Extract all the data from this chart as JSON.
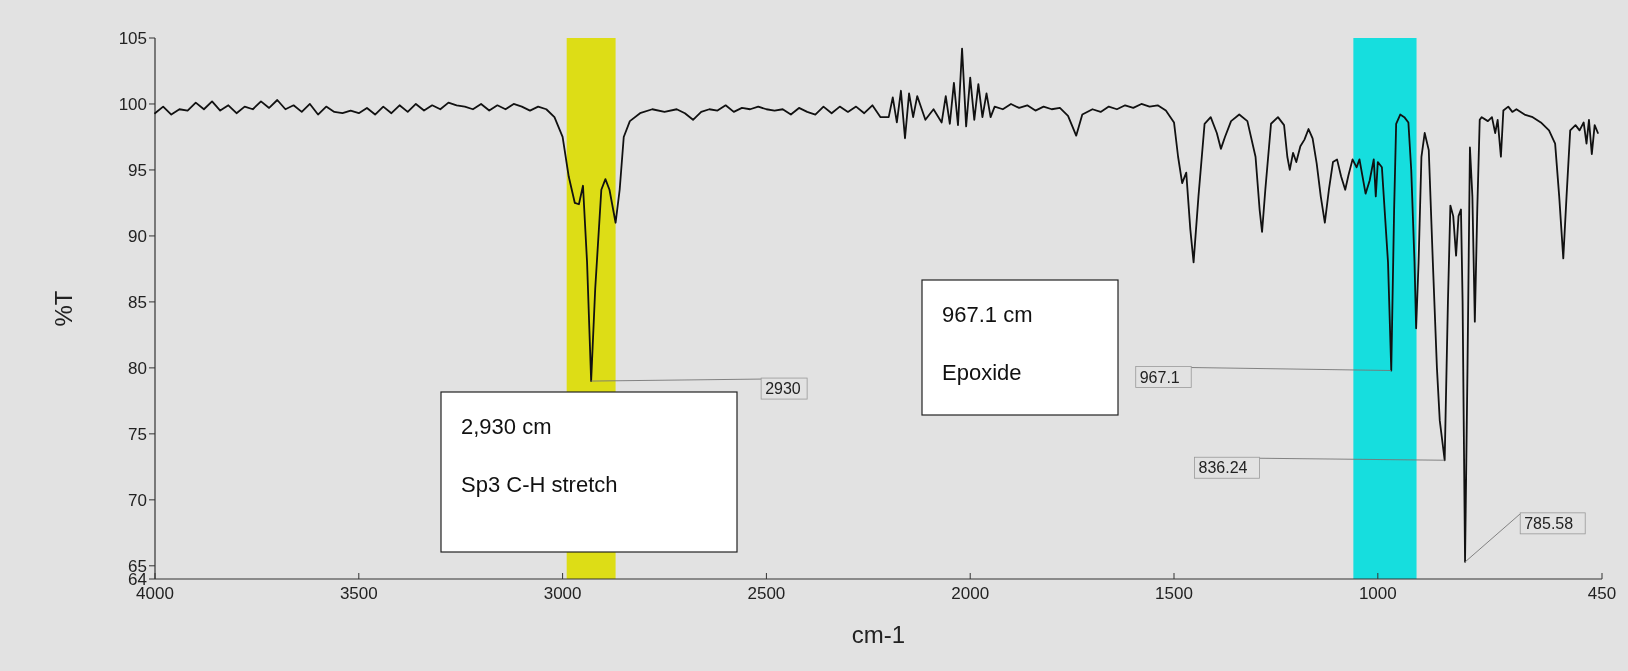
{
  "chart_data": {
    "type": "line",
    "xlabel": "cm-1",
    "ylabel": "%T",
    "xlim": [
      4000,
      450
    ],
    "ylim": [
      64,
      105
    ],
    "xticks": [
      4000,
      3500,
      3000,
      2500,
      2000,
      1500,
      1000,
      450
    ],
    "yticks": [
      64,
      65,
      70,
      75,
      80,
      85,
      90,
      95,
      100,
      105
    ],
    "grid": false,
    "marker": "none",
    "line_style": "solid",
    "series": [
      {
        "color": "#111111",
        "x": [
          4000,
          3980,
          3960,
          3940,
          3920,
          3900,
          3880,
          3860,
          3840,
          3820,
          3800,
          3780,
          3760,
          3740,
          3720,
          3700,
          3680,
          3660,
          3640,
          3620,
          3600,
          3580,
          3560,
          3540,
          3520,
          3500,
          3480,
          3460,
          3440,
          3420,
          3400,
          3380,
          3360,
          3340,
          3320,
          3300,
          3280,
          3260,
          3240,
          3220,
          3200,
          3180,
          3160,
          3140,
          3120,
          3100,
          3080,
          3060,
          3040,
          3020,
          3000,
          2985,
          2970,
          2960,
          2950,
          2940,
          2930,
          2920,
          2905,
          2895,
          2885,
          2870,
          2860,
          2850,
          2835,
          2810,
          2780,
          2750,
          2720,
          2700,
          2680,
          2660,
          2640,
          2620,
          2600,
          2580,
          2560,
          2540,
          2520,
          2500,
          2480,
          2460,
          2440,
          2420,
          2400,
          2380,
          2360,
          2340,
          2320,
          2300,
          2280,
          2260,
          2240,
          2220,
          2200,
          2190,
          2180,
          2170,
          2160,
          2150,
          2140,
          2130,
          2110,
          2090,
          2070,
          2060,
          2050,
          2040,
          2030,
          2020,
          2010,
          2000,
          1990,
          1980,
          1970,
          1960,
          1950,
          1940,
          1920,
          1900,
          1880,
          1860,
          1840,
          1820,
          1800,
          1780,
          1760,
          1740,
          1725,
          1700,
          1680,
          1660,
          1640,
          1620,
          1600,
          1580,
          1560,
          1540,
          1520,
          1500,
          1490,
          1480,
          1470,
          1460,
          1452,
          1440,
          1425,
          1410,
          1395,
          1385,
          1375,
          1360,
          1340,
          1320,
          1300,
          1290,
          1284,
          1276,
          1262,
          1245,
          1230,
          1222,
          1216,
          1208,
          1200,
          1190,
          1180,
          1170,
          1160,
          1150,
          1140,
          1130,
          1120,
          1110,
          1100,
          1090,
          1080,
          1072,
          1062,
          1052,
          1045,
          1030,
          1020,
          1010,
          1005,
          1000,
          990,
          975,
          967,
          960,
          955,
          945,
          935,
          925,
          918,
          910,
          906,
          900,
          893,
          885,
          875,
          865,
          855,
          848,
          836,
          828,
          822,
          815,
          808,
          802,
          796,
          792,
          786,
          780,
          774,
          768,
          762,
          756,
          750,
          745,
          730,
          720,
          712,
          706,
          698,
          692,
          680,
          670,
          660,
          640,
          620,
          600,
          580,
          565,
          555,
          545,
          537,
          528,
          515,
          505,
          495,
          488,
          482,
          475,
          468,
          460
        ],
        "values": [
          99.3,
          99.8,
          99.2,
          99.6,
          99.5,
          100.1,
          99.6,
          100.2,
          99.5,
          99.9,
          99.3,
          99.8,
          99.6,
          100.2,
          99.7,
          100.3,
          99.6,
          99.9,
          99.4,
          100.0,
          99.2,
          99.8,
          99.4,
          99.3,
          99.5,
          99.3,
          99.7,
          99.2,
          99.8,
          99.3,
          99.9,
          99.4,
          100.0,
          99.5,
          99.9,
          99.6,
          100.1,
          99.9,
          99.8,
          99.6,
          100.0,
          99.5,
          99.9,
          99.6,
          100.0,
          99.8,
          99.5,
          99.8,
          99.6,
          99.0,
          97.5,
          94.5,
          92.5,
          92.4,
          93.8,
          88.0,
          79.0,
          86.0,
          93.5,
          94.3,
          93.5,
          91.0,
          93.5,
          97.5,
          98.7,
          99.3,
          99.6,
          99.4,
          99.6,
          99.3,
          98.8,
          99.4,
          99.6,
          99.5,
          99.9,
          99.4,
          99.7,
          99.6,
          99.8,
          99.6,
          99.5,
          99.6,
          99.2,
          99.7,
          99.4,
          99.2,
          99.8,
          99.3,
          99.8,
          99.4,
          99.8,
          99.3,
          99.9,
          99.0,
          99.0,
          100.5,
          98.6,
          101.0,
          97.4,
          100.8,
          99.0,
          100.6,
          98.8,
          99.6,
          98.6,
          100.6,
          98.5,
          101.6,
          98.4,
          104.2,
          98.3,
          102.0,
          98.8,
          101.5,
          99.0,
          100.8,
          99.0,
          99.8,
          99.6,
          100.0,
          99.7,
          99.9,
          99.5,
          99.8,
          99.6,
          99.7,
          99.1,
          97.6,
          99.2,
          99.6,
          99.4,
          99.8,
          99.6,
          99.9,
          99.7,
          100.0,
          99.8,
          99.9,
          99.5,
          98.6,
          96.0,
          94.0,
          94.8,
          90.5,
          88.0,
          93.0,
          98.5,
          99.0,
          97.8,
          96.6,
          97.5,
          98.7,
          99.2,
          98.7,
          96.0,
          92.0,
          90.3,
          93.5,
          98.5,
          99.0,
          98.4,
          96.0,
          95.0,
          96.3,
          95.6,
          96.8,
          97.3,
          98.1,
          97.4,
          95.5,
          93.0,
          91.0,
          93.5,
          95.6,
          95.8,
          94.5,
          93.5,
          94.6,
          95.8,
          95.2,
          95.8,
          93.2,
          94.2,
          95.8,
          93.0,
          95.6,
          95.2,
          88.0,
          79.8,
          92.0,
          98.5,
          99.2,
          99.0,
          98.6,
          95.0,
          88.0,
          83.0,
          88.0,
          96.0,
          97.8,
          96.5,
          88.0,
          80.0,
          76.0,
          73.0,
          85.0,
          92.3,
          91.5,
          88.5,
          91.5,
          92.0,
          85.0,
          65.3,
          80.0,
          96.7,
          93.0,
          83.5,
          92.0,
          98.8,
          99.0,
          98.7,
          99.0,
          97.8,
          98.8,
          96.0,
          99.5,
          99.8,
          99.4,
          99.6,
          99.2,
          99.0,
          98.6,
          98.0,
          97.0,
          93.0,
          88.3,
          93.0,
          98.0,
          98.4,
          98.0,
          98.6,
          97.0,
          98.8,
          96.2,
          98.4,
          97.8
        ]
      }
    ],
    "bands": [
      {
        "axis": "x",
        "from": 2990,
        "to": 2870,
        "color": "#dddd00"
      },
      {
        "axis": "x",
        "from": 1060,
        "to": 905,
        "color": "#00dede"
      }
    ],
    "annotations": [
      {
        "text": "2930",
        "x": 2930,
        "y": 79
      },
      {
        "text": "967.1",
        "x": 967.1,
        "y": 79.8
      },
      {
        "text": "836.24",
        "x": 836.24,
        "y": 73
      },
      {
        "text": "785.58",
        "x": 785.58,
        "y": 65.3
      },
      "2,930 cm\nSp3 C-H stretch",
      "967.1 cm\nEpoxide"
    ]
  }
}
